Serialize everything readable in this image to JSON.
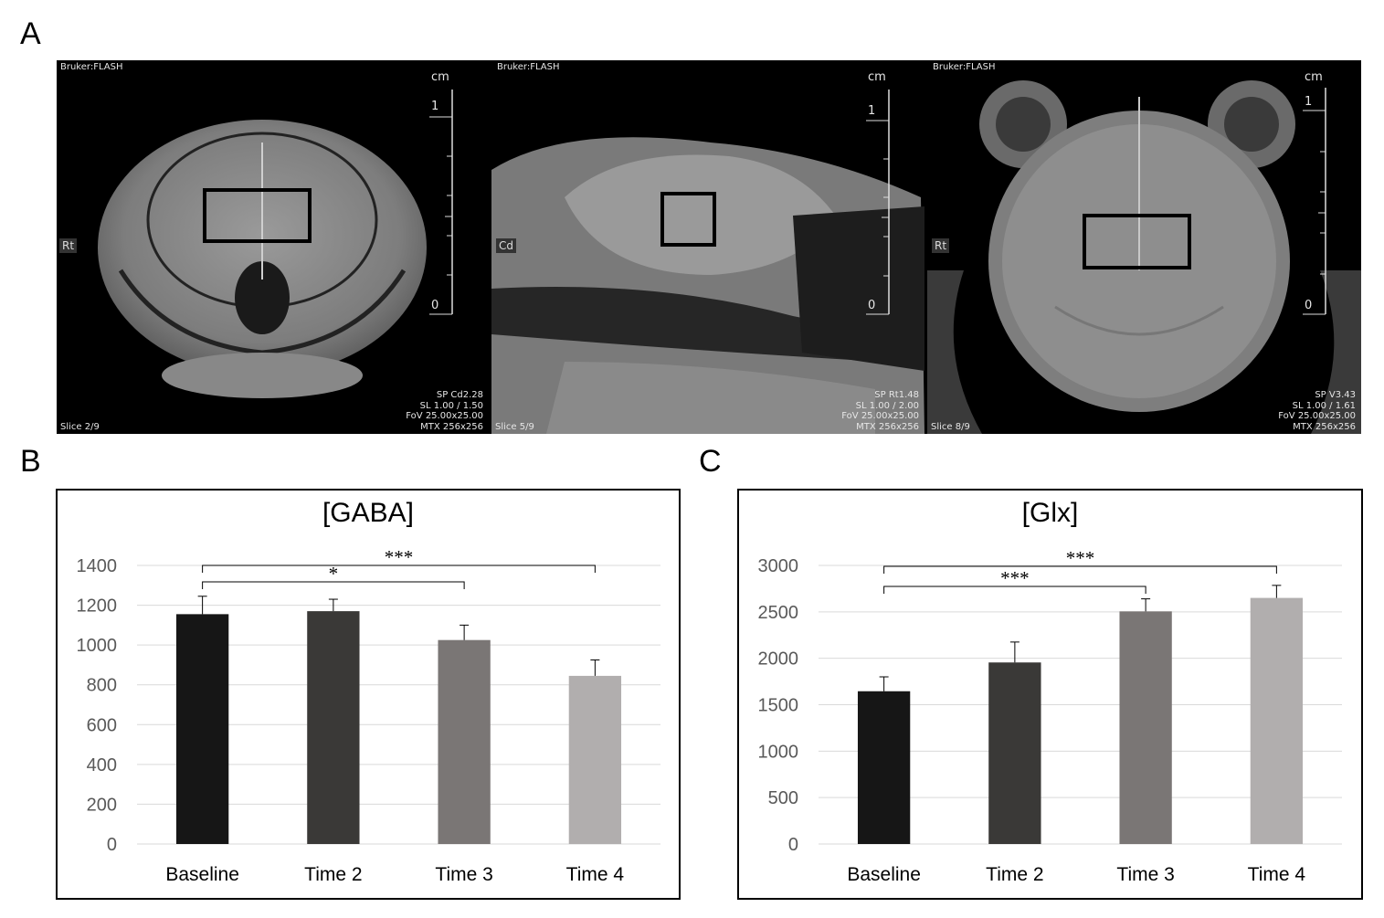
{
  "panel_labels": {
    "a": "A",
    "b": "B",
    "c": "C"
  },
  "mri_panels": [
    {
      "header": "Bruker:FLASH",
      "unit": "cm",
      "scale_top": "1",
      "scale_bottom": "0",
      "orientation": "Rt",
      "meta": [
        "SP Cd2.28",
        "SL 1.00 / 1.50",
        "FoV 25.00x25.00",
        "MTX 256x256"
      ],
      "slice": "Slice 2/9"
    },
    {
      "header": "Bruker:FLASH",
      "unit": "cm",
      "scale_top": "1",
      "scale_bottom": "0",
      "orientation": "Cd",
      "meta": [
        "SP Rt1.48",
        "SL 1.00 / 2.00",
        "FoV 25.00x25.00",
        "MTX 256x256"
      ],
      "slice": "Slice 5/9"
    },
    {
      "header": "Bruker:FLASH",
      "unit": "cm",
      "scale_top": "1",
      "scale_bottom": "0",
      "orientation": "Rt",
      "meta": [
        "SP V3.43",
        "SL 1.00 / 1.61",
        "FoV 25.00x25.00",
        "MTX 256x256"
      ],
      "slice": "Slice 8/9"
    }
  ],
  "chart_data": [
    {
      "type": "bar",
      "title": "[GABA]",
      "xlabel": "",
      "ylabel": "",
      "categories": [
        "Baseline",
        "Time 2",
        "Time 3",
        "Time 4"
      ],
      "values": [
        1155,
        1170,
        1025,
        845
      ],
      "errors": [
        90,
        60,
        75,
        80
      ],
      "ylim": [
        0,
        1400
      ],
      "yticks": [
        0,
        200,
        400,
        600,
        800,
        1000,
        1200,
        1400
      ],
      "colors": [
        "#161616",
        "#3a3937",
        "#7a7675",
        "#b1aeae"
      ],
      "grid": true,
      "significance": [
        {
          "from": 0,
          "to": 3,
          "label": "***",
          "level": 1
        },
        {
          "from": 0,
          "to": 2,
          "label": "*",
          "level": 0
        }
      ]
    },
    {
      "type": "bar",
      "title": "[Glx]",
      "xlabel": "",
      "ylabel": "",
      "categories": [
        "Baseline",
        "Time 2",
        "Time 3",
        "Time 4"
      ],
      "values": [
        1645,
        1955,
        2505,
        2650
      ],
      "errors": [
        155,
        220,
        135,
        135
      ],
      "ylim": [
        0,
        3000
      ],
      "yticks": [
        0,
        500,
        1000,
        1500,
        2000,
        2500,
        3000
      ],
      "colors": [
        "#161616",
        "#3a3937",
        "#7a7675",
        "#b1aeae"
      ],
      "grid": true,
      "significance": [
        {
          "from": 0,
          "to": 3,
          "label": "***",
          "level": 1
        },
        {
          "from": 0,
          "to": 2,
          "label": "***",
          "level": 0
        }
      ]
    }
  ]
}
